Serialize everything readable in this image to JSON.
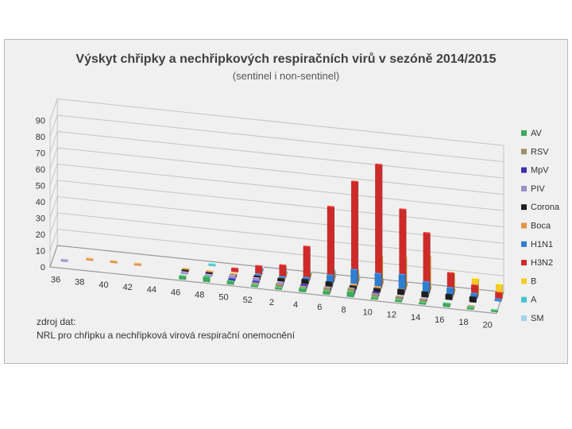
{
  "chart_data": {
    "type": "bar",
    "title": "Výskyt chřipky a nechřipkových respiračních virů v sezóně 2014/2015",
    "subtitle": "(sentinel i non-sentinel)",
    "xlabel": "",
    "ylabel": "",
    "ylim": [
      0,
      90
    ],
    "yticks": [
      "0",
      "10",
      "20",
      "30",
      "40",
      "50",
      "60",
      "70",
      "80",
      "90"
    ],
    "categories": [
      "36",
      "38",
      "40",
      "42",
      "44",
      "46",
      "48",
      "50",
      "52",
      "2",
      "4",
      "6",
      "8",
      "10",
      "12",
      "14",
      "16",
      "18",
      "20"
    ],
    "grid": true,
    "legend_position": "right",
    "series": [
      {
        "name": "AV",
        "color": "#3daa5c",
        "values": [
          0,
          0,
          0,
          0,
          0,
          2,
          3,
          2,
          1,
          1,
          2,
          2,
          3,
          1,
          1,
          1,
          2,
          1,
          1
        ]
      },
      {
        "name": "RSV",
        "color": "#9c8f6a",
        "values": [
          0,
          0,
          0,
          0,
          0,
          0,
          0,
          0,
          1,
          2,
          2,
          3,
          4,
          2,
          2,
          2,
          1,
          1,
          0
        ]
      },
      {
        "name": "MpV",
        "color": "#3b30a8",
        "values": [
          0,
          0,
          0,
          0,
          0,
          0,
          0,
          1,
          1,
          1,
          2,
          2,
          3,
          2,
          1,
          1,
          0,
          0,
          0
        ]
      },
      {
        "name": "PIV",
        "color": "#9b8fc9",
        "values": [
          1,
          0,
          0,
          0,
          0,
          1,
          1,
          2,
          2,
          1,
          1,
          1,
          1,
          0,
          0,
          0,
          0,
          0,
          0
        ]
      },
      {
        "name": "Corona",
        "color": "#1e1e1e",
        "values": [
          0,
          0,
          0,
          0,
          0,
          1,
          1,
          1,
          2,
          2,
          3,
          3,
          2,
          2,
          3,
          3,
          3,
          3,
          0
        ]
      },
      {
        "name": "Boca",
        "color": "#e39448",
        "values": [
          0,
          1,
          1,
          1,
          0,
          1,
          1,
          1,
          1,
          1,
          1,
          1,
          2,
          2,
          2,
          1,
          1,
          0,
          0
        ]
      },
      {
        "name": "H1N1",
        "color": "#2f7fd0",
        "values": [
          0,
          0,
          0,
          0,
          0,
          0,
          0,
          0,
          1,
          1,
          2,
          5,
          10,
          9,
          10,
          7,
          5,
          3,
          1
        ]
      },
      {
        "name": "H3N2",
        "color": "#cf2a2a",
        "values": [
          0,
          0,
          0,
          0,
          0,
          0,
          0,
          2,
          5,
          7,
          20,
          46,
          63,
          75,
          49,
          36,
          13,
          7,
          4
        ]
      },
      {
        "name": "B",
        "color": "#f5cc2a",
        "values": [
          0,
          0,
          0,
          0,
          0,
          0,
          0,
          0,
          0,
          1,
          3,
          5,
          8,
          18,
          19,
          21,
          12,
          10,
          8
        ]
      },
      {
        "name": "A",
        "color": "#45c3d3",
        "values": [
          0,
          0,
          0,
          0,
          0,
          0,
          1,
          0,
          1,
          1,
          2,
          5,
          4,
          3,
          2,
          1,
          1,
          0,
          0
        ]
      },
      {
        "name": "SM",
        "color": "#9fd4ea",
        "values": [
          0,
          0,
          0,
          0,
          0,
          0,
          0,
          0,
          1,
          0,
          1,
          2,
          1,
          0,
          0,
          0,
          0,
          0,
          0
        ]
      }
    ]
  },
  "source_note": {
    "line1": "zdroj dat:",
    "line2": "NRL pro chřipku a nechřipková virová respirační onemocnění"
  }
}
